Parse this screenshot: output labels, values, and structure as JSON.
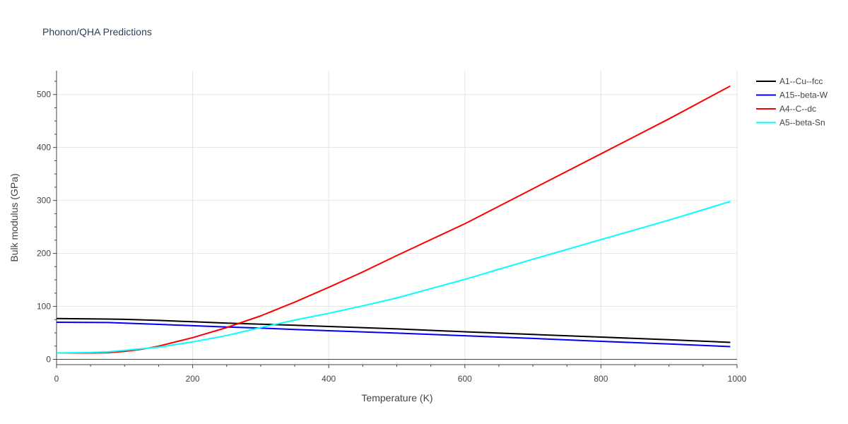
{
  "chart_data": {
    "type": "line",
    "title": "Phonon/QHA Predictions",
    "xlabel": "Temperature (K)",
    "ylabel": "Bulk modulus (GPa)",
    "xlim": [
      0,
      1000
    ],
    "ylim": [
      -10,
      545
    ],
    "x_ticks": [
      0,
      200,
      400,
      600,
      800,
      1000
    ],
    "y_ticks": [
      0,
      100,
      200,
      300,
      400,
      500
    ],
    "grid": true,
    "legend_position": "top-right",
    "series": [
      {
        "name": "A1--Cu--fcc",
        "color": "#000000",
        "x": [
          0,
          75,
          100,
          150,
          200,
          250,
          300,
          350,
          400,
          500,
          600,
          700,
          800,
          900,
          990
        ],
        "y": [
          77,
          76,
          75.5,
          73.5,
          71,
          68.5,
          66.5,
          64.5,
          62,
          57.5,
          52,
          47,
          42,
          37,
          32
        ]
      },
      {
        "name": "A15--beta-W",
        "color": "#0000ff",
        "x": [
          0,
          75,
          100,
          150,
          200,
          250,
          300,
          350,
          400,
          500,
          600,
          700,
          800,
          900,
          990
        ],
        "y": [
          70,
          69.5,
          68.5,
          66,
          63.5,
          61,
          59,
          56.5,
          54,
          49.5,
          44.5,
          39.5,
          34,
          29,
          24
        ]
      },
      {
        "name": "A4--C--dc",
        "color": "#ff0000",
        "x": [
          0,
          50,
          75,
          100,
          125,
          150,
          200,
          250,
          300,
          350,
          400,
          450,
          500,
          600,
          700,
          800,
          900,
          990
        ],
        "y": [
          12,
          12,
          12.5,
          15,
          19,
          25,
          41,
          60,
          82,
          108,
          136,
          165,
          196,
          256,
          322,
          388,
          454,
          516
        ]
      },
      {
        "name": "A5--beta-Sn",
        "color": "#00ffff",
        "x": [
          0,
          50,
          75,
          100,
          150,
          200,
          250,
          300,
          350,
          400,
          450,
          500,
          600,
          700,
          800,
          900,
          990
        ],
        "y": [
          12,
          13,
          14,
          17,
          23,
          33,
          45,
          60,
          74,
          87,
          101,
          116,
          151,
          189,
          226,
          263,
          298
        ]
      }
    ]
  }
}
